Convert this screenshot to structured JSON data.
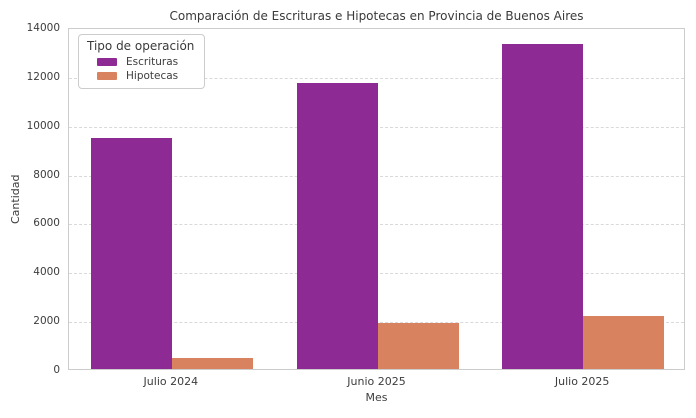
{
  "chart_data": {
    "type": "bar",
    "title": "Comparación de Escrituras e Hipotecas en Provincia de Buenos Aires",
    "xlabel": "Mes",
    "ylabel": "Cantidad",
    "categories": [
      "Julio 2024",
      "Junio 2025",
      "Julio 2025"
    ],
    "series": [
      {
        "name": "Escrituras",
        "color": "#8e2a94",
        "values": [
          9450,
          11700,
          13300
        ]
      },
      {
        "name": "Hipotecas",
        "color": "#d9825f",
        "values": [
          450,
          1900,
          2150
        ]
      }
    ],
    "ylim": [
      0,
      14000
    ],
    "yticks": [
      0,
      2000,
      4000,
      6000,
      8000,
      10000,
      12000,
      14000
    ],
    "grid": {
      "axis": "y",
      "style": "dashed",
      "color": "#d9d9d9"
    },
    "legend": {
      "title": "Tipo de operación",
      "position": "upper-left"
    },
    "plot_border_color": "#cccccc",
    "text_color": "#3a3a3a"
  }
}
